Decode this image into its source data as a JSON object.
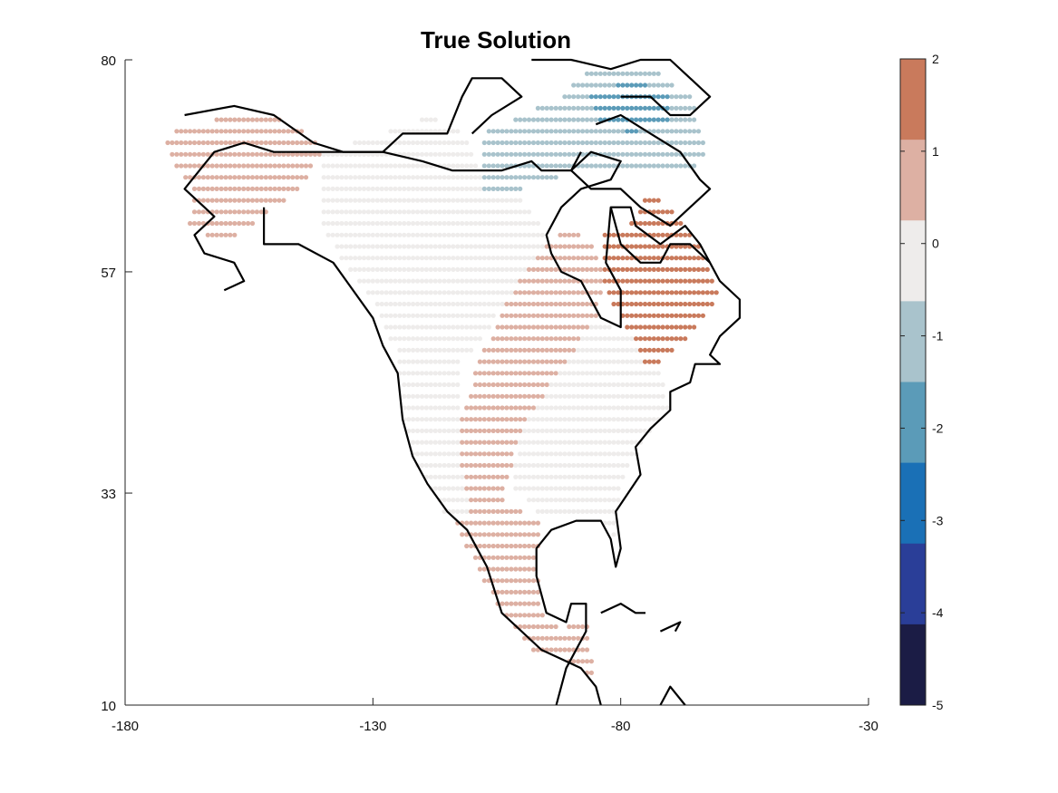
{
  "chart_data": {
    "type": "scatter",
    "title": "True Solution",
    "xlim": [
      -180,
      -30
    ],
    "ylim": [
      10,
      80
    ],
    "x_ticks": [
      -180,
      -130,
      -80,
      -30
    ],
    "y_ticks": [
      10,
      33,
      57,
      80
    ],
    "grid": false,
    "colorbar": {
      "range": [
        -5,
        2
      ],
      "ticks": [
        2,
        1,
        0,
        -1,
        -2,
        -3,
        -4,
        -5
      ],
      "bins": [
        {
          "from": 1,
          "to": 2,
          "color": "#c97a5c"
        },
        {
          "from": 0,
          "to": 1,
          "color": "#ddb0a3"
        },
        {
          "from": -1,
          "to": 0,
          "color": "#eeeceb"
        },
        {
          "from": -2,
          "to": -1,
          "color": "#a9c3cc"
        },
        {
          "from": -3,
          "to": -2,
          "color": "#5b9bb8"
        },
        {
          "from": -4,
          "to": -3,
          "color": "#1a70b6"
        },
        {
          "from": -5,
          "to": -4,
          "color": "#2a3e98"
        },
        {
          "from": -6,
          "to": -5,
          "color": "#1b1c45"
        }
      ]
    },
    "regions": [
      {
        "name": "alaska",
        "value": 0.6,
        "points": [
          [
            -172,
            72
          ],
          [
            -158,
            74
          ],
          [
            -150,
            74
          ],
          [
            -143,
            72
          ],
          [
            -140,
            70
          ],
          [
            -145,
            66
          ],
          [
            -152,
            63
          ],
          [
            -160,
            60
          ],
          [
            -167,
            62
          ],
          [
            -166,
            66
          ],
          [
            -170,
            68
          ]
        ]
      },
      {
        "name": "northwest-canada",
        "value": -0.1,
        "points": [
          [
            -140,
            70
          ],
          [
            -128,
            72
          ],
          [
            -118,
            74
          ],
          [
            -112,
            72
          ],
          [
            -108,
            68
          ],
          [
            -103,
            66
          ],
          [
            -98,
            64
          ],
          [
            -95,
            60
          ],
          [
            -103,
            54
          ],
          [
            -110,
            48
          ],
          [
            -118,
            46
          ],
          [
            -125,
            48
          ],
          [
            -130,
            54
          ],
          [
            -136,
            58
          ],
          [
            -140,
            62
          ]
        ]
      },
      {
        "name": "western-us",
        "value": -0.2,
        "points": [
          [
            -125,
            48
          ],
          [
            -112,
            48
          ],
          [
            -112,
            40
          ],
          [
            -110,
            34
          ],
          [
            -110,
            30
          ],
          [
            -115,
            30
          ],
          [
            -119,
            34
          ],
          [
            -122,
            37
          ],
          [
            -124,
            41
          ]
        ]
      },
      {
        "name": "great-plains-band",
        "value": 0.6,
        "points": [
          [
            -103,
            54
          ],
          [
            -95,
            60
          ],
          [
            -90,
            62
          ],
          [
            -86,
            60
          ],
          [
            -83,
            56
          ],
          [
            -85,
            52
          ],
          [
            -90,
            48
          ],
          [
            -95,
            44
          ],
          [
            -100,
            40
          ],
          [
            -102,
            36
          ],
          [
            -104,
            32
          ],
          [
            -110,
            30
          ],
          [
            -112,
            36
          ],
          [
            -112,
            42
          ],
          [
            -108,
            48
          ]
        ]
      },
      {
        "name": "eastern-us",
        "value": -0.2,
        "points": [
          [
            -85,
            52
          ],
          [
            -78,
            50
          ],
          [
            -72,
            46
          ],
          [
            -70,
            42
          ],
          [
            -76,
            38
          ],
          [
            -80,
            34
          ],
          [
            -81,
            28
          ],
          [
            -84,
            30
          ],
          [
            -90,
            30
          ],
          [
            -96,
            30
          ],
          [
            -102,
            34
          ],
          [
            -100,
            40
          ],
          [
            -95,
            44
          ],
          [
            -90,
            48
          ]
        ]
      },
      {
        "name": "quebec-labrador",
        "value": 1.4,
        "points": [
          [
            -84,
            62
          ],
          [
            -78,
            62
          ],
          [
            -75,
            66
          ],
          [
            -70,
            64
          ],
          [
            -64,
            60
          ],
          [
            -60,
            54
          ],
          [
            -66,
            50
          ],
          [
            -70,
            48
          ],
          [
            -74,
            46
          ],
          [
            -78,
            50
          ],
          [
            -84,
            56
          ]
        ]
      },
      {
        "name": "mexico",
        "value": 0.7,
        "points": [
          [
            -114,
            30
          ],
          [
            -104,
            32
          ],
          [
            -96,
            30
          ],
          [
            -97,
            26
          ],
          [
            -96,
            20
          ],
          [
            -92,
            18
          ],
          [
            -87,
            20
          ],
          [
            -86,
            16
          ],
          [
            -85,
            12
          ],
          [
            -88,
            14
          ],
          [
            -92,
            15
          ],
          [
            -98,
            16
          ],
          [
            -104,
            20
          ],
          [
            -108,
            24
          ],
          [
            -112,
            28
          ]
        ]
      },
      {
        "name": "arctic-islands",
        "value": -1.2,
        "points": [
          [
            -108,
            72
          ],
          [
            -100,
            74
          ],
          [
            -92,
            76
          ],
          [
            -84,
            80
          ],
          [
            -76,
            80
          ],
          [
            -66,
            76
          ],
          [
            -62,
            70
          ],
          [
            -66,
            68
          ],
          [
            -78,
            68
          ],
          [
            -88,
            68
          ],
          [
            -100,
            66
          ],
          [
            -108,
            66
          ]
        ]
      },
      {
        "name": "ellesmere-core",
        "value": -2.3,
        "points": [
          [
            -86,
            76
          ],
          [
            -78,
            78
          ],
          [
            -70,
            76
          ],
          [
            -70,
            73
          ],
          [
            -78,
            72
          ],
          [
            -84,
            73
          ]
        ]
      }
    ],
    "coastlines": [
      [
        [
          -168,
          74
        ],
        [
          -158,
          75
        ],
        [
          -150,
          74
        ],
        [
          -142,
          71
        ],
        [
          -136,
          70
        ],
        [
          -128,
          70
        ],
        [
          -124,
          72
        ],
        [
          -115,
          72
        ],
        [
          -112,
          76
        ],
        [
          -110,
          78
        ],
        [
          -104,
          78
        ],
        [
          -100,
          76
        ],
        [
          -106,
          74
        ],
        [
          -110,
          72
        ]
      ],
      [
        [
          -152,
          64
        ],
        [
          -152,
          60
        ],
        [
          -145,
          60
        ],
        [
          -138,
          58
        ],
        [
          -130,
          52
        ],
        [
          -128,
          49
        ],
        [
          -125,
          46
        ],
        [
          -124,
          41
        ],
        [
          -122,
          37
        ],
        [
          -119,
          34
        ],
        [
          -115,
          31
        ],
        [
          -111,
          29
        ],
        [
          -107,
          25
        ],
        [
          -104,
          20
        ],
        [
          -96,
          16
        ],
        [
          -92,
          15
        ],
        [
          -88,
          14
        ],
        [
          -85,
          12
        ],
        [
          -84,
          10
        ]
      ],
      [
        [
          -93,
          10
        ],
        [
          -91,
          14
        ],
        [
          -87,
          18
        ],
        [
          -87,
          21
        ],
        [
          -90,
          21
        ],
        [
          -91,
          19
        ],
        [
          -95,
          20
        ],
        [
          -97,
          24
        ],
        [
          -97,
          27
        ],
        [
          -94,
          29
        ],
        [
          -89,
          30
        ],
        [
          -84,
          30
        ],
        [
          -82,
          28
        ],
        [
          -81,
          25
        ],
        [
          -80,
          27
        ],
        [
          -81,
          31
        ],
        [
          -76,
          35
        ],
        [
          -77,
          38
        ],
        [
          -74,
          40
        ],
        [
          -70,
          42
        ],
        [
          -70,
          44
        ],
        [
          -66,
          45
        ],
        [
          -65,
          47
        ],
        [
          -60,
          47
        ],
        [
          -62,
          48
        ],
        [
          -60,
          50
        ],
        [
          -56,
          52
        ],
        [
          -56,
          54
        ],
        [
          -60,
          56
        ],
        [
          -62,
          58
        ],
        [
          -64,
          60
        ],
        [
          -67,
          62
        ],
        [
          -72,
          60
        ],
        [
          -77,
          62
        ],
        [
          -78,
          64
        ],
        [
          -82,
          64
        ],
        [
          -83,
          58
        ],
        [
          -80,
          55
        ],
        [
          -80,
          51
        ],
        [
          -84,
          52
        ],
        [
          -88,
          56
        ],
        [
          -92,
          57
        ],
        [
          -94,
          59
        ],
        [
          -95,
          61
        ],
        [
          -92,
          64
        ],
        [
          -88,
          66
        ],
        [
          -82,
          67
        ],
        [
          -80,
          69
        ],
        [
          -86,
          70
        ],
        [
          -90,
          68
        ],
        [
          -96,
          68
        ],
        [
          -98,
          69
        ],
        [
          -104,
          68
        ],
        [
          -108,
          68
        ],
        [
          -114,
          68
        ],
        [
          -120,
          69
        ],
        [
          -128,
          70
        ],
        [
          -134,
          70
        ],
        [
          -141,
          70
        ],
        [
          -150,
          70
        ],
        [
          -156,
          71
        ],
        [
          -162,
          70
        ],
        [
          -165,
          68
        ],
        [
          -168,
          66
        ],
        [
          -164,
          64
        ],
        [
          -162,
          63
        ],
        [
          -166,
          61
        ],
        [
          -164,
          59
        ],
        [
          -158,
          58
        ],
        [
          -156,
          56
        ],
        [
          -160,
          55
        ]
      ],
      [
        [
          -82,
          64
        ],
        [
          -80,
          60
        ],
        [
          -76,
          58
        ],
        [
          -72,
          58
        ],
        [
          -70,
          60
        ],
        [
          -66,
          60
        ],
        [
          -62,
          58
        ]
      ],
      [
        [
          -85,
          73
        ],
        [
          -80,
          74
        ],
        [
          -74,
          72
        ],
        [
          -68,
          70
        ],
        [
          -64,
          67
        ],
        [
          -62,
          66
        ],
        [
          -66,
          64
        ],
        [
          -70,
          62
        ],
        [
          -76,
          64
        ],
        [
          -80,
          66
        ],
        [
          -86,
          66
        ],
        [
          -90,
          68
        ],
        [
          -88,
          70
        ]
      ],
      [
        [
          -98,
          80
        ],
        [
          -90,
          80
        ],
        [
          -82,
          79
        ],
        [
          -76,
          80
        ],
        [
          -70,
          80
        ],
        [
          -66,
          78
        ],
        [
          -62,
          76
        ],
        [
          -66,
          74
        ],
        [
          -70,
          74
        ],
        [
          -74,
          76
        ],
        [
          -80,
          76
        ]
      ],
      [
        [
          -84,
          20
        ],
        [
          -80,
          21
        ],
        [
          -77,
          20
        ],
        [
          -75,
          20
        ]
      ],
      [
        [
          -72,
          18
        ],
        [
          -68,
          19
        ],
        [
          -69,
          18
        ]
      ],
      [
        [
          -72,
          10
        ],
        [
          -70,
          12
        ],
        [
          -67,
          10
        ]
      ]
    ]
  }
}
